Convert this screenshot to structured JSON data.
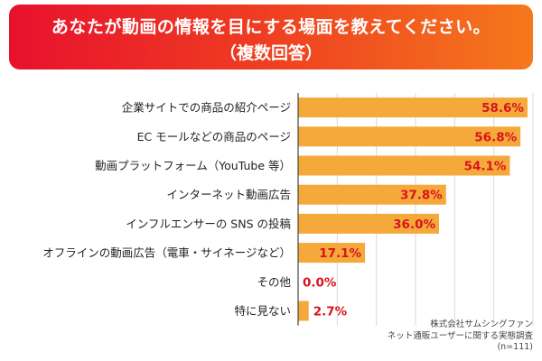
{
  "title": {
    "line1": "あなたが動画の情報を目にする場面を教えてください。",
    "line2": "（複数回答）"
  },
  "note": {
    "line1": "株式会社サムシングファン",
    "line2": "ネット通販ユーザーに関する実態調査",
    "line3": "(n=111)"
  },
  "colors": {
    "bar": "#f5a93a",
    "value_label": "#d8141e",
    "grid": "#d9d9d9",
    "axis": "#444444"
  },
  "chart_data": {
    "type": "bar",
    "orientation": "horizontal",
    "categories": [
      "企業サイトでの商品の紹介ページ",
      "EC モールなどの商品のページ",
      "動画プラットフォーム（YouTube 等）",
      "インターネット動画広告",
      "インフルエンサーの SNS の投稿",
      "オフラインの動画広告（電車・サイネージなど）",
      "その他",
      "特に見ない"
    ],
    "values": [
      58.6,
      56.8,
      54.1,
      37.8,
      36.0,
      17.1,
      0.0,
      2.7
    ],
    "value_labels": [
      "58.6%",
      "56.8%",
      "54.1%",
      "37.8%",
      "36.0%",
      "17.1%",
      "0.0%",
      "2.7%"
    ],
    "xlim": [
      0,
      60
    ],
    "grid": true,
    "legend": "none"
  }
}
